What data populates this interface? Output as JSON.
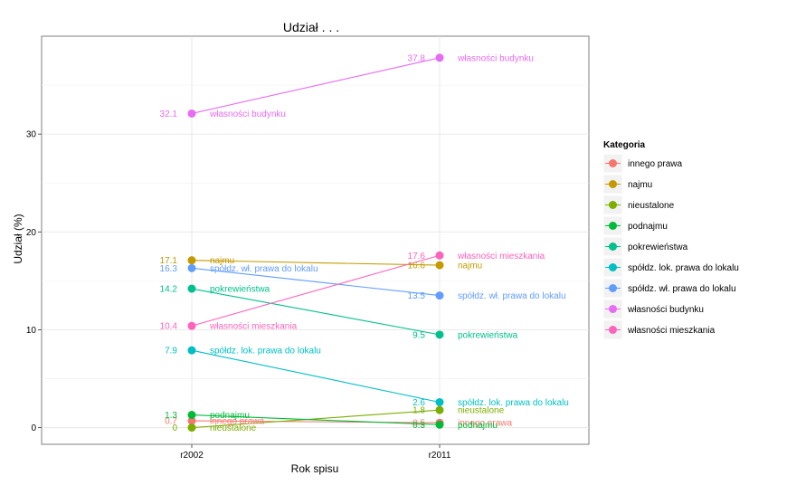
{
  "chart_data": {
    "type": "line",
    "title": "Udział . . .",
    "xlabel": "Rok spisu",
    "ylabel": "Udział (%)",
    "categories": [
      "r2002",
      "r2011"
    ],
    "ylim": [
      -1.7,
      40
    ],
    "yticks": [
      0,
      10,
      20,
      30
    ],
    "grid": true,
    "legend": {
      "title": "Kategoria",
      "position": "right"
    },
    "series": [
      {
        "name": "innego prawa",
        "values": [
          0.7,
          0.5
        ],
        "color": "#F8766D"
      },
      {
        "name": "najmu",
        "values": [
          17.1,
          16.6
        ],
        "color": "#C49A00"
      },
      {
        "name": "nieustalone",
        "values": [
          0.0,
          1.8
        ],
        "color": "#7CAE00"
      },
      {
        "name": "podnajmu",
        "values": [
          1.3,
          0.3
        ],
        "color": "#00BA38"
      },
      {
        "name": "pokrewieństwa",
        "values": [
          14.2,
          9.5
        ],
        "color": "#00C08B"
      },
      {
        "name": "spółdz. lok. prawa do lokalu",
        "values": [
          7.9,
          2.6
        ],
        "color": "#00BFC4"
      },
      {
        "name": "spółdz. wł. prawa do lokalu",
        "values": [
          16.3,
          13.5
        ],
        "color": "#619CFF"
      },
      {
        "name": "własności budynku",
        "values": [
          32.1,
          37.8
        ],
        "color": "#E76BF3"
      },
      {
        "name": "własności mieszkania",
        "values": [
          10.4,
          17.6
        ],
        "color": "#FF62BC"
      }
    ],
    "value_labels": [
      [
        "0.7",
        "0.5"
      ],
      [
        "17.1",
        "16.6"
      ],
      [
        "0",
        "1.8"
      ],
      [
        "1.3",
        "0.3"
      ],
      [
        "14.2",
        "9.5"
      ],
      [
        "7.9",
        "2.6"
      ],
      [
        "16.3",
        "13.5"
      ],
      [
        "32.1",
        "37.8"
      ],
      [
        "10.4",
        "17.6"
      ]
    ]
  }
}
